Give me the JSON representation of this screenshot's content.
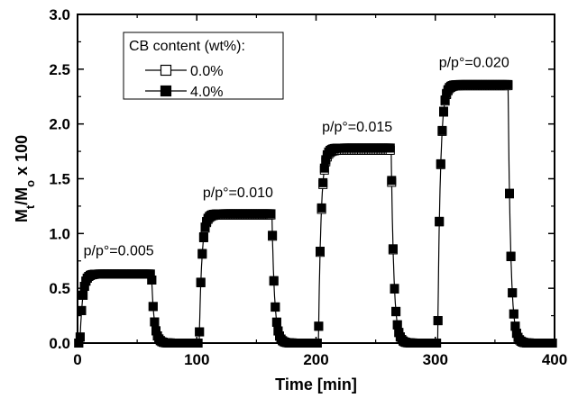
{
  "chart_data": {
    "type": "scatter",
    "xlabel": "Time  [min]",
    "ylabel": "M_t/M_o x 100",
    "xlim": [
      0,
      400
    ],
    "ylim": [
      0,
      3.0
    ],
    "x_ticks": [
      "0",
      "100",
      "200",
      "300",
      "400"
    ],
    "y_ticks": [
      "0.0",
      "0.5",
      "1.0",
      "1.5",
      "2.0",
      "2.5",
      "3.0"
    ],
    "grid": false,
    "legend": {
      "title": "CB content (wt%):",
      "placement": "top-left",
      "entries": [
        "0.0%",
        "4.0%"
      ]
    },
    "series": [
      {
        "name": "0.0%",
        "marker": "open-square",
        "color": "#000000",
        "steps": [
          {
            "start": 2,
            "end": 62,
            "plateau": 0.63
          },
          {
            "start": 102,
            "end": 163,
            "plateau": 1.17
          },
          {
            "start": 202,
            "end": 263,
            "plateau": 1.76
          },
          {
            "start": 302,
            "end": 361,
            "plateau": 2.35
          }
        ]
      },
      {
        "name": "4.0%",
        "marker": "filled-square",
        "color": "#000000",
        "steps": [
          {
            "start": 2,
            "end": 62,
            "plateau": 0.63
          },
          {
            "start": 102,
            "end": 163,
            "plateau": 1.18
          },
          {
            "start": 202,
            "end": 263,
            "plateau": 1.78
          },
          {
            "start": 302,
            "end": 361,
            "plateau": 2.36
          }
        ]
      }
    ],
    "annotations": [
      {
        "text": "p/p°=0.005",
        "x": 5,
        "y": 0.8
      },
      {
        "text": "p/p°=0.010",
        "x": 105,
        "y": 1.33
      },
      {
        "text": "p/p°=0.015",
        "x": 205,
        "y": 1.93
      },
      {
        "text": "p/p°=0.020",
        "x": 303,
        "y": 2.52
      }
    ]
  }
}
